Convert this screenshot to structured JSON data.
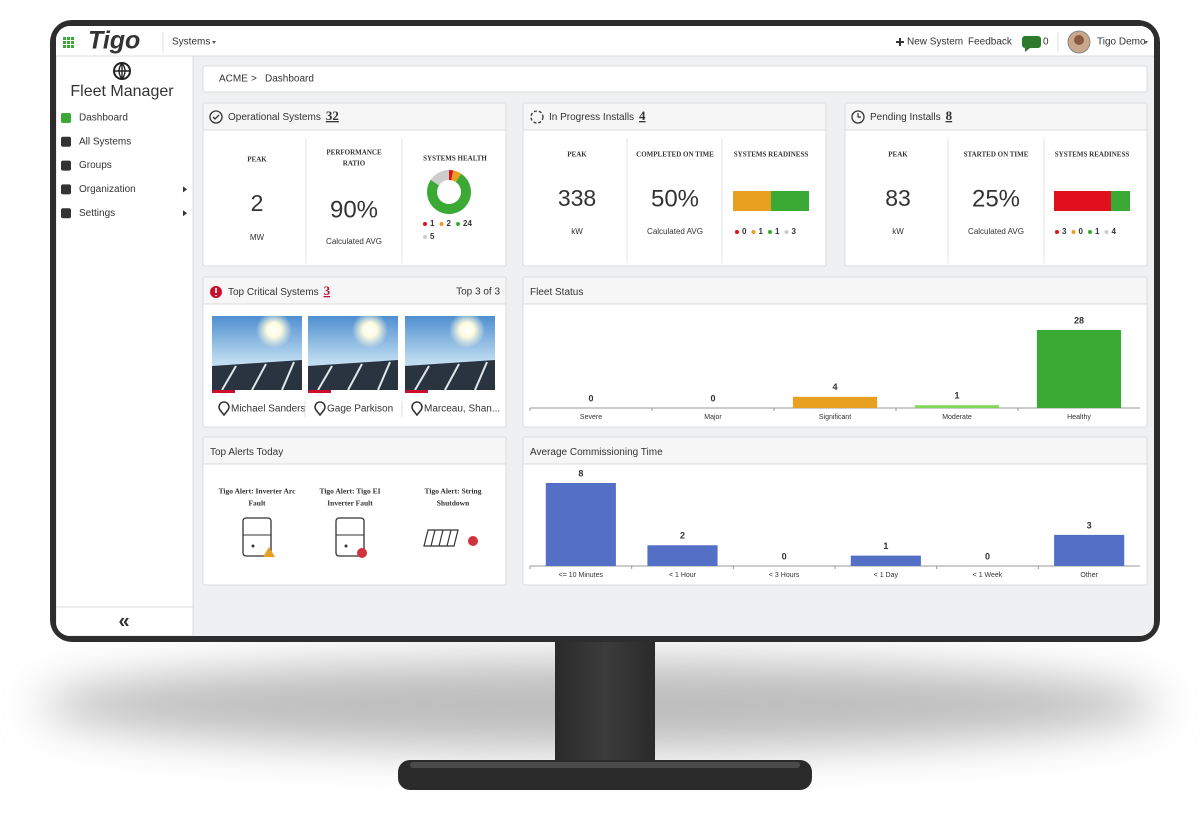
{
  "nav": {
    "logo": "Tigo",
    "menu": "Systems",
    "new_system": "New System",
    "feedback": "Feedback",
    "messages": 0,
    "user": "Tigo Demo"
  },
  "sidebar": {
    "title": "Fleet Manager",
    "items": [
      "Dashboard",
      "All Systems",
      "Groups",
      "Organization",
      "Settings"
    ],
    "collapse": "«"
  },
  "breadcrumb": {
    "items": [
      "ACME",
      "Dashboard"
    ],
    "separator": ">"
  },
  "operational": {
    "title": "Operational Systems",
    "count": 32,
    "peak": {
      "label": "PEAK",
      "value": 2,
      "unit": "MW"
    },
    "ratio": {
      "label": [
        "PERFORMANCE",
        "RATIO"
      ],
      "value": "90%",
      "note": "Calculated AVG"
    },
    "health": {
      "label": "SYSTEMS HEALTH",
      "values": [
        1,
        2,
        24,
        5
      ],
      "colors": [
        "#e0101e",
        "#e8a020",
        "#3aaa35",
        "#cccccc"
      ]
    }
  },
  "in_progress": {
    "title": "In Progress Installs",
    "count": 4,
    "peak": {
      "label": "PEAK",
      "value": 338,
      "unit": "kW"
    },
    "completed": {
      "label": "COMPLETED ON TIME",
      "value": "50%",
      "note": "Calculated AVG"
    },
    "readiness": {
      "label": "SYSTEMS READINESS",
      "values": [
        0,
        1,
        1,
        3
      ],
      "colors": [
        "#e0101e",
        "#e8a020",
        "#3aaa35",
        "#cccccc"
      ]
    }
  },
  "pending": {
    "title": "Pending Installs",
    "count": 8,
    "peak": {
      "label": "PEAK",
      "value": 83,
      "unit": "kW"
    },
    "started": {
      "label": "STARTED ON TIME",
      "value": "25%",
      "note": "Calculated AVG"
    },
    "readiness": {
      "label": "SYSTEMS READINESS",
      "values": [
        3,
        0,
        1,
        4
      ],
      "colors": [
        "#e0101e",
        "#e8a020",
        "#3aaa35",
        "#cccccc"
      ]
    }
  },
  "critical": {
    "title": "Top Critical Systems",
    "count": 3,
    "summary": "Top 3 of 3",
    "systems": [
      "Michael Sanders",
      "Gage Parkison",
      "Marceau, Shan..."
    ]
  },
  "alerts": {
    "title": "Top Alerts Today",
    "items": [
      [
        "Tigo Alert: Inverter Arc",
        "Fault"
      ],
      [
        "Tigo Alert: Tigo EI",
        "Inverter Fault"
      ],
      [
        "Tigo Alert: String",
        "Shutdown"
      ]
    ]
  },
  "chart_data": [
    {
      "type": "bar",
      "title": "Fleet Status",
      "categories": [
        "Severe",
        "Major",
        "Significant",
        "Moderate",
        "Healthy"
      ],
      "values": [
        0,
        0,
        4,
        1,
        28
      ],
      "colors": [
        "#e0101e",
        "#f07020",
        "#e8a020",
        "#7ed957",
        "#3aaa35"
      ]
    },
    {
      "type": "bar",
      "title": "Average Commissioning Time",
      "categories": [
        "<= 10 Minutes",
        "< 1 Hour",
        "< 3 Hours",
        "< 1 Day",
        "< 1 Week",
        "Other"
      ],
      "values": [
        8,
        2,
        0,
        1,
        0,
        3
      ],
      "color": "#5470c6"
    }
  ]
}
